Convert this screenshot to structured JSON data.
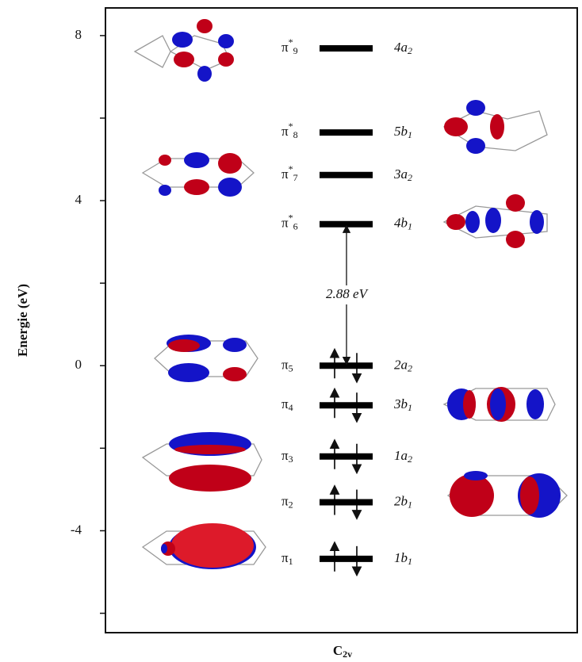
{
  "chart_data": {
    "type": "energy-levels",
    "ylabel": "Energie (eV)",
    "xlabel": "C",
    "xlabel_sub": "2v",
    "ylim": [
      -6.47,
      8.67
    ],
    "yticks": [
      -4,
      0,
      4,
      8
    ],
    "minor_yticks": [
      -6,
      -2,
      2,
      6
    ],
    "levels": [
      {
        "label": "π",
        "sup": "*",
        "sub": "9",
        "symmetry": "4a",
        "symmetry_sub": "2",
        "energy": 7.69,
        "electrons": 0
      },
      {
        "label": "π",
        "sup": "*",
        "sub": "8",
        "symmetry": "5b",
        "symmetry_sub": "1",
        "energy": 5.65,
        "electrons": 0
      },
      {
        "label": "π",
        "sup": "*",
        "sub": "7",
        "symmetry": "3a",
        "symmetry_sub": "2",
        "energy": 4.62,
        "electrons": 0
      },
      {
        "label": "π",
        "sup": "*",
        "sub": "6",
        "symmetry": "4b",
        "symmetry_sub": "1",
        "energy": 3.43,
        "electrons": 0
      },
      {
        "label": "π",
        "sub": "5",
        "symmetry": "2a",
        "symmetry_sub": "2",
        "energy": 0.0,
        "electrons": 2
      },
      {
        "label": "π",
        "sub": "4",
        "symmetry": "3b",
        "symmetry_sub": "1",
        "energy": -0.96,
        "electrons": 2
      },
      {
        "label": "π",
        "sub": "3",
        "symmetry": "1a",
        "symmetry_sub": "2",
        "energy": -2.2,
        "electrons": 2
      },
      {
        "label": "π",
        "sub": "2",
        "symmetry": "2b",
        "symmetry_sub": "1",
        "energy": -3.31,
        "electrons": 2
      },
      {
        "label": "π",
        "sub": "1",
        "symmetry": "1b",
        "symmetry_sub": "1",
        "energy": -4.68,
        "electrons": 2
      }
    ],
    "annotation": {
      "label": "2.88 eV"
    }
  }
}
